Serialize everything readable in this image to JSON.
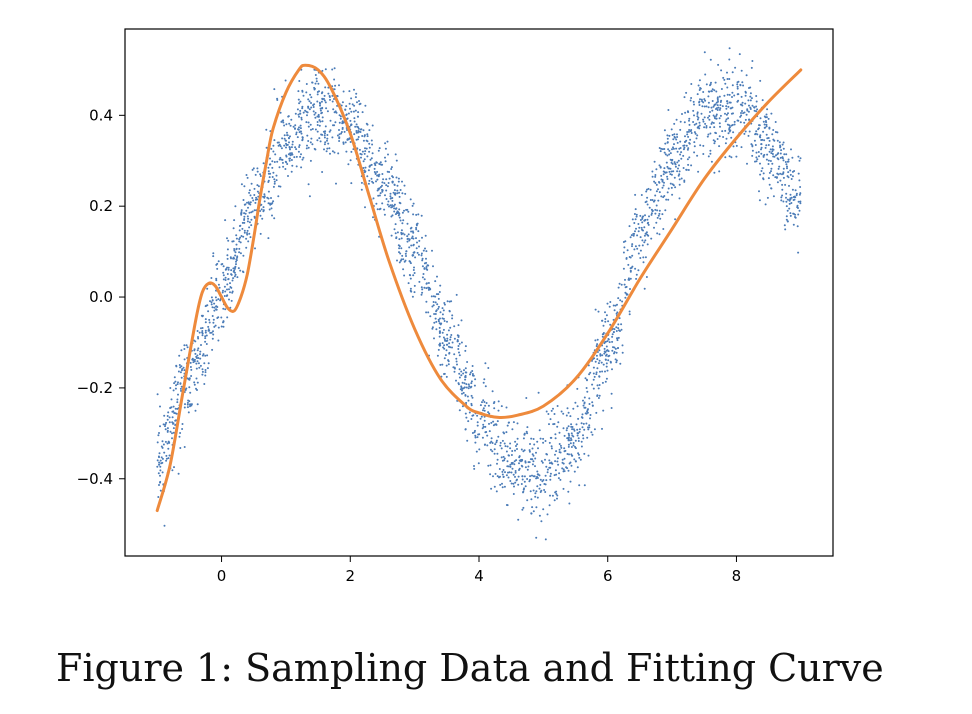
{
  "caption": "Figure 1: Sampling Data and Fitting Curve",
  "colors": {
    "scatter": "#4a7bb7",
    "fit": "#ee8a3c",
    "axes": "#000000"
  },
  "chart_data": {
    "type": "scatter",
    "title": "",
    "xlabel": "",
    "ylabel": "",
    "xlim": [
      -1.5,
      9.5
    ],
    "ylim": [
      -0.57,
      0.59
    ],
    "grid": false,
    "legend": "none",
    "xticks": [
      0,
      2,
      4,
      6,
      8
    ],
    "xtick_labels": [
      "0",
      "2",
      "4",
      "6",
      "8"
    ],
    "yticks": [
      -0.4,
      -0.2,
      0.0,
      0.2,
      0.4
    ],
    "ytick_labels": [
      "−0.4",
      "−0.2",
      "0.0",
      "0.2",
      "0.4"
    ],
    "series": [
      {
        "kind": "scatter",
        "x_range": [
          -1.0,
          9.0
        ],
        "approx_count": 3000,
        "trend_x": [
          -1.0,
          -0.5,
          0.0,
          0.5,
          1.0,
          1.5,
          2.0,
          2.5,
          3.0,
          3.5,
          4.0,
          4.5,
          5.0,
          5.5,
          6.0,
          6.5,
          7.0,
          7.5,
          8.0,
          8.5,
          9.0
        ],
        "trend_y": [
          -0.35,
          -0.18,
          0.01,
          0.2,
          0.34,
          0.4,
          0.37,
          0.25,
          0.1,
          -0.09,
          -0.26,
          -0.37,
          -0.39,
          -0.3,
          -0.11,
          0.13,
          0.3,
          0.4,
          0.42,
          0.33,
          0.2
        ],
        "noise": 0.05
      },
      {
        "kind": "line",
        "x": [
          -1.0,
          -0.8,
          -0.6,
          -0.4,
          -0.3,
          -0.2,
          -0.1,
          0.0,
          0.1,
          0.2,
          0.3,
          0.4,
          0.5,
          0.6,
          0.7,
          0.8,
          1.0,
          1.2,
          1.3,
          1.5,
          1.7,
          2.0,
          2.3,
          2.6,
          3.0,
          3.4,
          3.8,
          4.0,
          4.3,
          4.6,
          5.0,
          5.5,
          6.0,
          6.5,
          7.0,
          7.5,
          8.0,
          8.5,
          9.0
        ],
        "y": [
          -0.47,
          -0.37,
          -0.21,
          -0.05,
          0.01,
          0.03,
          0.025,
          0.0,
          -0.025,
          -0.03,
          0.0,
          0.05,
          0.13,
          0.22,
          0.3,
          0.37,
          0.45,
          0.5,
          0.51,
          0.5,
          0.46,
          0.36,
          0.22,
          0.08,
          -0.07,
          -0.18,
          -0.24,
          -0.255,
          -0.265,
          -0.26,
          -0.24,
          -0.18,
          -0.08,
          0.04,
          0.15,
          0.26,
          0.35,
          0.43,
          0.5
        ]
      }
    ]
  }
}
